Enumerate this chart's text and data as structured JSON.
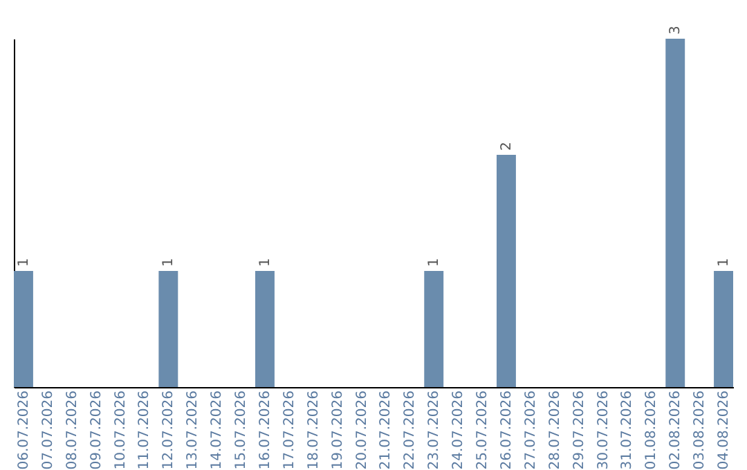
{
  "chart_data": {
    "type": "bar",
    "categories": [
      "06.07.2026",
      "07.07.2026",
      "08.07.2026",
      "09.07.2026",
      "10.07.2026",
      "11.07.2026",
      "12.07.2026",
      "13.07.2026",
      "14.07.2026",
      "15.07.2026",
      "16.07.2026",
      "17.07.2026",
      "18.07.2026",
      "19.07.2026",
      "20.07.2026",
      "21.07.2026",
      "22.07.2026",
      "23.07.2026",
      "24.07.2026",
      "25.07.2026",
      "26.07.2026",
      "27.07.2026",
      "28.07.2026",
      "29.07.2026",
      "30.07.2026",
      "31.07.2026",
      "01.08.2026",
      "02.08.2026",
      "03.08.2026",
      "04.08.2026"
    ],
    "values": [
      1,
      0,
      0,
      0,
      0,
      0,
      1,
      0,
      0,
      0,
      1,
      0,
      0,
      0,
      0,
      0,
      0,
      1,
      0,
      0,
      2,
      0,
      0,
      0,
      0,
      0,
      0,
      3,
      0,
      1
    ],
    "value_labels": [
      "1",
      null,
      null,
      null,
      null,
      null,
      "1",
      null,
      null,
      null,
      "1",
      null,
      null,
      null,
      null,
      null,
      null,
      "1",
      null,
      null,
      "2",
      null,
      null,
      null,
      null,
      null,
      null,
      "3",
      null,
      "1"
    ],
    "color": "#6a8cad",
    "grid": false,
    "tick_labels": "x"
  }
}
